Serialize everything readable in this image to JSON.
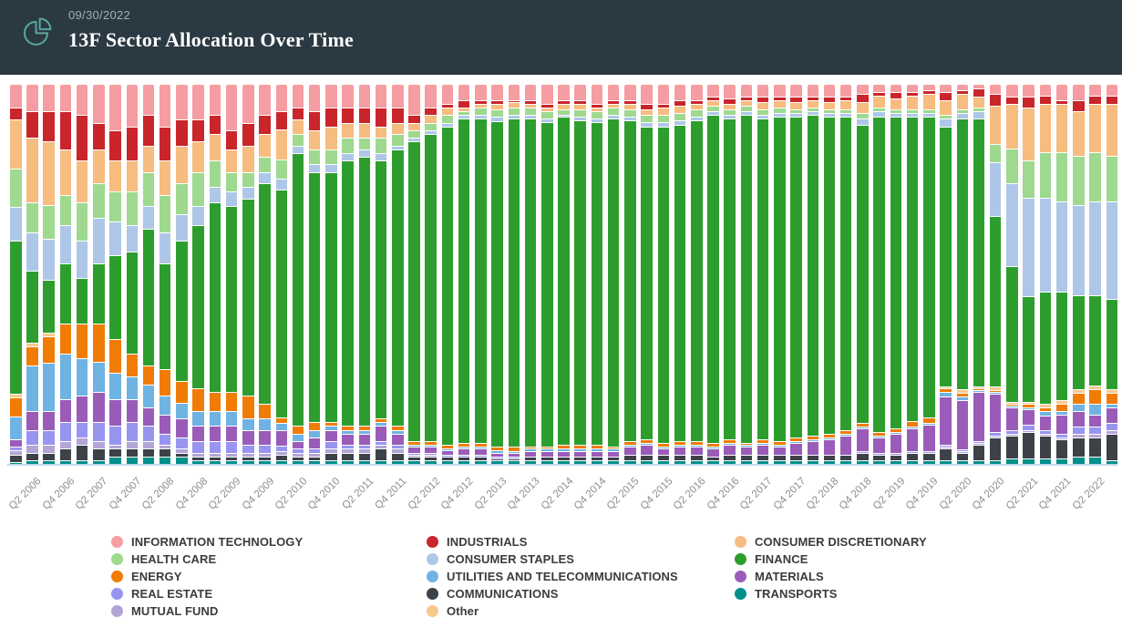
{
  "header": {
    "date": "09/30/2022",
    "title": "13F Sector Allocation Over Time"
  },
  "icons": {
    "logo": "pie-chart-icon",
    "logo_color": "#58a79e"
  },
  "colors": {
    "header_bg": "#2b3942",
    "axis_line": "#c3d9ec",
    "axis_label": "#8a8f93"
  },
  "chart_data": {
    "type": "bar",
    "variant": "stacked-100-percent",
    "unit": "percent of portfolio",
    "grid": false,
    "legend_position": "bottom",
    "n_bars": 67,
    "label_offset": 1,
    "label_every": 2,
    "x_labels_shown": [
      "Q2 2006",
      "Q4 2006",
      "Q2 2007",
      "Q4 2007",
      "Q2 2008",
      "Q4 2008",
      "Q2 2009",
      "Q4 2009",
      "Q2 2010",
      "Q4 2010",
      "Q2 2011",
      "Q4 2011",
      "Q2 2012",
      "Q4 2012",
      "Q2 2013",
      "Q4 2013",
      "Q2 2014",
      "Q4 2014",
      "Q2 2015",
      "Q4 2015",
      "Q2 2016",
      "Q4 2016",
      "Q2 2017",
      "Q4 2017",
      "Q2 2018",
      "Q4 2018",
      "Q2 2019",
      "Q4 2019",
      "Q2 2020",
      "Q4 2020",
      "Q2 2021",
      "Q4 2021",
      "Q2 2022"
    ],
    "categories": [
      "Q1 2006",
      "Q2 2006",
      "Q3 2006",
      "Q4 2006",
      "Q1 2007",
      "Q2 2007",
      "Q3 2007",
      "Q4 2007",
      "Q1 2008",
      "Q2 2008",
      "Q3 2008",
      "Q4 2008",
      "Q1 2009",
      "Q2 2009",
      "Q3 2009",
      "Q4 2009",
      "Q1 2010",
      "Q2 2010",
      "Q3 2010",
      "Q4 2010",
      "Q1 2011",
      "Q2 2011",
      "Q3 2011",
      "Q4 2011",
      "Q1 2012",
      "Q2 2012",
      "Q3 2012",
      "Q4 2012",
      "Q1 2013",
      "Q2 2013",
      "Q3 2013",
      "Q4 2013",
      "Q1 2014",
      "Q2 2014",
      "Q3 2014",
      "Q4 2014",
      "Q1 2015",
      "Q2 2015",
      "Q3 2015",
      "Q4 2015",
      "Q1 2016",
      "Q2 2016",
      "Q3 2016",
      "Q4 2016",
      "Q1 2017",
      "Q2 2017",
      "Q3 2017",
      "Q4 2017",
      "Q1 2018",
      "Q2 2018",
      "Q3 2018",
      "Q4 2018",
      "Q1 2019",
      "Q2 2019",
      "Q3 2019",
      "Q4 2019",
      "Q1 2020",
      "Q2 2020",
      "Q3 2020",
      "Q4 2020",
      "Q1 2021",
      "Q2 2021",
      "Q3 2021",
      "Q4 2021",
      "Q1 2022",
      "Q2 2022",
      "Q3 2022"
    ],
    "stack_order_bottom_to_top": [
      "transports",
      "communications",
      "mutual_fund",
      "real_estate",
      "materials",
      "utilities",
      "energy",
      "other",
      "finance",
      "consumer_staples",
      "health_care",
      "consumer_discretionary",
      "industrials",
      "information_technology"
    ],
    "series": [
      {
        "key": "information_technology",
        "name": "INFORMATION TECHNOLOGY",
        "color": "#f59da2",
        "values": [
          6,
          7,
          7,
          7,
          8,
          10,
          12,
          11,
          8,
          11,
          9,
          9,
          8,
          12,
          10,
          8,
          7,
          6,
          7,
          6,
          6,
          6,
          6,
          6,
          8,
          6,
          5,
          4,
          4,
          4,
          4,
          4,
          5,
          4,
          4,
          5,
          4,
          4,
          5,
          5,
          4,
          4,
          3,
          3.5,
          3,
          3,
          3,
          3,
          3,
          3,
          3,
          2.5,
          2,
          2,
          2,
          1.5,
          2,
          1.5,
          1,
          2.5,
          3,
          3,
          3,
          4,
          4,
          3,
          3
        ]
      },
      {
        "key": "health_care",
        "name": "HEALTH CARE",
        "color": "#9ed98f",
        "values": [
          10,
          8,
          9,
          8,
          10,
          9,
          8,
          9,
          9,
          10,
          8,
          9,
          7,
          5,
          4,
          4,
          5,
          3,
          4,
          4,
          4,
          3,
          4,
          3,
          2,
          2,
          2,
          1,
          2,
          2,
          2,
          2,
          2,
          1.5,
          2,
          2,
          2,
          2,
          2,
          2,
          2,
          2,
          1.5,
          1.5,
          1.5,
          1.5,
          1.5,
          1,
          1,
          1,
          1,
          1.5,
          1,
          1,
          1,
          1,
          1,
          1,
          1,
          5,
          9,
          10,
          12,
          13,
          13,
          13,
          12
        ]
      },
      {
        "key": "energy",
        "name": "ENERGY",
        "color": "#f07c05",
        "values": [
          5,
          5,
          7,
          8,
          9,
          10,
          9,
          6,
          5,
          7,
          6,
          6,
          5,
          5,
          6,
          4,
          1.5,
          2,
          2,
          1,
          1,
          1,
          1,
          1,
          1,
          1,
          1,
          1,
          1,
          1,
          1,
          0.5,
          0.5,
          1,
          1,
          1,
          0.5,
          1,
          1,
          1,
          1,
          1,
          1,
          1,
          0.5,
          1,
          1,
          1,
          1,
          1,
          1,
          1,
          1,
          1,
          1.5,
          1.5,
          1,
          1,
          0.5,
          0.5,
          0.5,
          1,
          1,
          2,
          3,
          4,
          3
        ]
      },
      {
        "key": "real_estate",
        "name": "REAL ESTATE",
        "color": "#9795f0",
        "values": [
          1,
          4,
          4,
          5,
          4,
          5,
          5,
          5,
          4,
          3,
          3,
          3,
          3,
          3,
          2,
          2,
          1.5,
          1,
          1,
          2,
          1,
          1,
          1,
          1,
          0.5,
          0.5,
          0.5,
          0.5,
          0.5,
          0.5,
          0.5,
          0,
          0,
          0,
          0,
          0,
          0,
          0,
          0,
          0,
          0,
          0,
          0,
          0,
          0,
          0,
          0,
          0,
          0,
          0,
          0,
          0.5,
          0.5,
          0.5,
          0.5,
          0.5,
          0.5,
          0.5,
          0.5,
          1,
          1,
          1.5,
          1,
          1,
          2,
          2,
          2
        ]
      },
      {
        "key": "mutual_fund",
        "name": "MUTUAL FUND",
        "color": "#b3a5d6",
        "values": [
          1,
          2,
          2,
          2,
          2,
          2,
          1,
          2,
          2,
          1,
          1,
          1,
          1,
          1,
          1,
          1,
          1,
          1,
          1,
          1,
          1,
          1,
          1,
          1,
          0.5,
          0.5,
          0,
          0,
          0,
          0,
          0,
          0,
          0,
          0,
          0,
          0,
          0,
          0,
          0,
          0,
          0,
          0,
          0,
          0,
          0,
          0,
          0,
          0,
          0,
          0,
          0,
          0,
          0,
          0,
          0,
          0,
          0.5,
          0.5,
          0.5,
          0.5,
          0.5,
          0.5,
          0.5,
          0.5,
          1,
          1,
          1
        ]
      },
      {
        "key": "industrials",
        "name": "INDUSTRIALS",
        "color": "#c9252b",
        "values": [
          3,
          7,
          8,
          10,
          12,
          7,
          8,
          9,
          8,
          9,
          7,
          6,
          5,
          5,
          6,
          5,
          5,
          3,
          5,
          5,
          4,
          4,
          5,
          4,
          2,
          2,
          1,
          2,
          1,
          1,
          0.5,
          1,
          1,
          1,
          1,
          1,
          1,
          1,
          1.5,
          1,
          1.5,
          1,
          1,
          1.5,
          1,
          1.5,
          1,
          1.5,
          1,
          1.5,
          1,
          2,
          1,
          1.5,
          1,
          1,
          2,
          1,
          2,
          3,
          2,
          3,
          2,
          1,
          3,
          2,
          2
        ]
      },
      {
        "key": "consumer_staples",
        "name": "CONSUMER STAPLES",
        "color": "#aec7e8",
        "values": [
          9,
          10,
          11,
          10,
          10,
          12,
          9,
          7,
          6,
          8,
          7,
          5,
          4,
          4,
          3,
          3,
          3,
          2,
          2,
          2,
          2,
          2,
          2,
          1,
          1,
          1,
          1,
          1,
          1,
          1,
          1,
          1,
          1,
          0.5,
          1,
          1,
          1,
          1,
          1,
          1,
          1,
          1,
          1,
          1,
          1,
          1,
          1,
          1,
          1,
          1,
          1,
          1.5,
          1.5,
          1,
          1,
          1,
          2,
          1.5,
          2,
          14,
          22,
          26,
          25,
          24,
          24,
          25,
          26
        ]
      },
      {
        "key": "utilities",
        "name": "UTILITIES AND TELECOMMUNICATIONS",
        "color": "#6fb3e3",
        "values": [
          6,
          12,
          13,
          12,
          10,
          8,
          7,
          6,
          6,
          5,
          4,
          4,
          4,
          4,
          3,
          3,
          2,
          2,
          2,
          1,
          1,
          1,
          1,
          1,
          0.5,
          0.5,
          0.5,
          0.5,
          0.5,
          0.5,
          0.5,
          0.5,
          0.5,
          0.5,
          0.5,
          0.5,
          0.5,
          0.5,
          0.5,
          0.5,
          0.5,
          0.5,
          0.5,
          0.5,
          0.5,
          0.5,
          0.5,
          0.5,
          0.5,
          0.5,
          0.5,
          0.5,
          0.5,
          0.5,
          0.5,
          0.5,
          1,
          1,
          0.5,
          0.5,
          0.5,
          0.5,
          1,
          1,
          2,
          3,
          1
        ]
      },
      {
        "key": "communications",
        "name": "COMMUNICATIONS",
        "color": "#3c4247",
        "values": [
          2,
          2,
          2,
          3,
          4,
          3,
          2,
          2,
          2,
          2,
          1,
          1,
          1,
          1,
          1,
          1,
          1.5,
          1,
          1,
          2,
          2,
          2,
          3,
          2,
          1,
          1,
          1,
          1,
          1,
          0.5,
          0.5,
          1,
          1,
          1,
          1,
          1,
          1,
          1.5,
          1.5,
          1.5,
          1.5,
          1.5,
          1,
          1.5,
          1.5,
          1.5,
          1.5,
          1.5,
          1.5,
          1.5,
          1.5,
          2,
          1.5,
          1.5,
          2,
          2,
          3,
          2,
          4,
          6,
          6,
          7,
          6,
          5,
          5,
          5,
          7
        ]
      },
      {
        "key": "other",
        "name": "Other",
        "color": "#f8c98e",
        "values": [
          1,
          1,
          1,
          0,
          0,
          0,
          0,
          0,
          0,
          0,
          0,
          0,
          0,
          0,
          0,
          0,
          0,
          0,
          0,
          0,
          0,
          0,
          0,
          0,
          0,
          0,
          0,
          0,
          0,
          0,
          0,
          0,
          0,
          0,
          0,
          0,
          0,
          0,
          0,
          0,
          0,
          0,
          0,
          0,
          0,
          0,
          0,
          0,
          0,
          0,
          0,
          0,
          0,
          0,
          0,
          0,
          0.5,
          1,
          0.5,
          1,
          0.5,
          0.5,
          1,
          1,
          1,
          1,
          1
        ]
      },
      {
        "key": "consumer_discretionary",
        "name": "CONSUMER DISCRETIONARY",
        "color": "#f6bc80",
        "values": [
          13,
          17,
          17,
          12,
          11,
          9,
          8,
          8,
          7,
          9,
          10,
          8,
          7,
          6,
          7,
          6,
          8,
          4,
          5,
          6,
          4,
          4,
          3,
          3,
          2,
          2,
          2,
          1,
          1,
          1.5,
          1.5,
          1,
          1,
          1.5,
          1.5,
          1,
          1,
          1.5,
          1.5,
          2,
          2,
          1.5,
          1.5,
          1.5,
          1.5,
          2,
          2,
          2,
          2,
          2,
          2.5,
          3,
          3,
          3,
          3.5,
          4,
          4,
          4,
          3,
          10,
          12,
          14,
          13,
          13,
          12,
          13,
          14
        ]
      },
      {
        "key": "finance",
        "name": "FINANCE",
        "color": "#2d9e2d",
        "values": [
          40,
          19,
          14,
          16,
          12,
          16,
          22,
          27,
          36,
          28,
          37,
          43,
          50,
          49,
          52,
          58,
          61,
          72,
          66,
          66,
          70,
          71,
          68,
          73,
          79,
          81,
          84,
          86,
          86,
          86,
          87,
          87,
          86,
          87,
          86,
          85.5,
          87,
          85,
          83,
          84,
          84,
          85,
          87,
          85,
          87,
          85,
          86,
          85,
          85,
          84,
          83,
          79,
          84,
          83,
          81,
          80,
          69,
          72,
          71,
          45,
          36,
          28,
          30,
          29,
          25,
          24,
          24
        ]
      },
      {
        "key": "materials",
        "name": "MATERIALS",
        "color": "#9a5cb8",
        "values": [
          2,
          5,
          5,
          6,
          7,
          8,
          7,
          6,
          5,
          5,
          5,
          4,
          4,
          4,
          4,
          4,
          4,
          2,
          3,
          3,
          3,
          3,
          4,
          3,
          1.5,
          1.5,
          1,
          1.5,
          1.5,
          1,
          1,
          1.5,
          1.5,
          1.5,
          1.5,
          1.5,
          1.5,
          2,
          2.5,
          1.5,
          2,
          2,
          2,
          2.5,
          2,
          2.5,
          2,
          3,
          3.5,
          4,
          5,
          6,
          4,
          5,
          6,
          7,
          13,
          13,
          13,
          10,
          6,
          4,
          4,
          5,
          4,
          3,
          4
        ]
      },
      {
        "key": "transports",
        "name": "TRANSPORTS",
        "color": "#008f8a",
        "values": [
          0.5,
          1,
          1,
          1,
          1,
          1,
          2,
          2,
          2,
          2,
          2,
          1,
          1,
          1,
          1,
          1,
          1,
          1,
          1,
          1,
          1,
          1,
          1,
          1,
          1,
          1,
          1,
          1,
          1,
          1,
          1,
          1,
          1,
          1,
          1,
          1,
          1,
          1,
          1,
          1,
          1,
          1,
          1,
          1,
          1,
          1,
          1,
          1,
          1,
          1,
          1,
          1,
          1,
          1,
          1,
          1,
          1,
          1,
          1,
          1,
          1.5,
          1.5,
          1.5,
          1.5,
          2,
          2,
          1
        ]
      }
    ],
    "legend_columns": [
      [
        "INFORMATION TECHNOLOGY",
        "HEALTH CARE",
        "ENERGY",
        "REAL ESTATE",
        "MUTUAL FUND"
      ],
      [
        "INDUSTRIALS",
        "CONSUMER STAPLES",
        "UTILITIES AND TELECOMMUNICATIONS",
        "COMMUNICATIONS",
        "Other"
      ],
      [
        "CONSUMER DISCRETIONARY",
        "FINANCE",
        "MATERIALS",
        "TRANSPORTS"
      ]
    ]
  }
}
